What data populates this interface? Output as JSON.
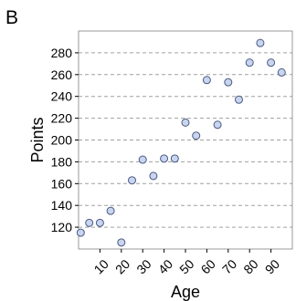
{
  "panel_label": "B",
  "chart_data": {
    "type": "scatter",
    "title": "",
    "xlabel": "Age",
    "ylabel": "Points",
    "xlim": [
      0,
      100
    ],
    "ylim": [
      100,
      300
    ],
    "xticks": [
      10,
      20,
      30,
      40,
      50,
      60,
      70,
      80,
      90
    ],
    "yticks": [
      120,
      140,
      160,
      180,
      200,
      220,
      240,
      260,
      280
    ],
    "grid": "horizontal dashed",
    "legend": "none",
    "marker_fill": "#c8d4f0",
    "marker_stroke": "#4a5a80",
    "points": [
      {
        "x": 1,
        "y": 115
      },
      {
        "x": 5,
        "y": 124
      },
      {
        "x": 10,
        "y": 124
      },
      {
        "x": 15,
        "y": 135
      },
      {
        "x": 20,
        "y": 106
      },
      {
        "x": 25,
        "y": 163
      },
      {
        "x": 30,
        "y": 182
      },
      {
        "x": 35,
        "y": 167
      },
      {
        "x": 40,
        "y": 183
      },
      {
        "x": 45,
        "y": 183
      },
      {
        "x": 50,
        "y": 216
      },
      {
        "x": 55,
        "y": 204
      },
      {
        "x": 60,
        "y": 255
      },
      {
        "x": 65,
        "y": 214
      },
      {
        "x": 70,
        "y": 253
      },
      {
        "x": 75,
        "y": 237
      },
      {
        "x": 80,
        "y": 271
      },
      {
        "x": 85,
        "y": 289
      },
      {
        "x": 90,
        "y": 271
      },
      {
        "x": 95,
        "y": 262
      }
    ]
  }
}
